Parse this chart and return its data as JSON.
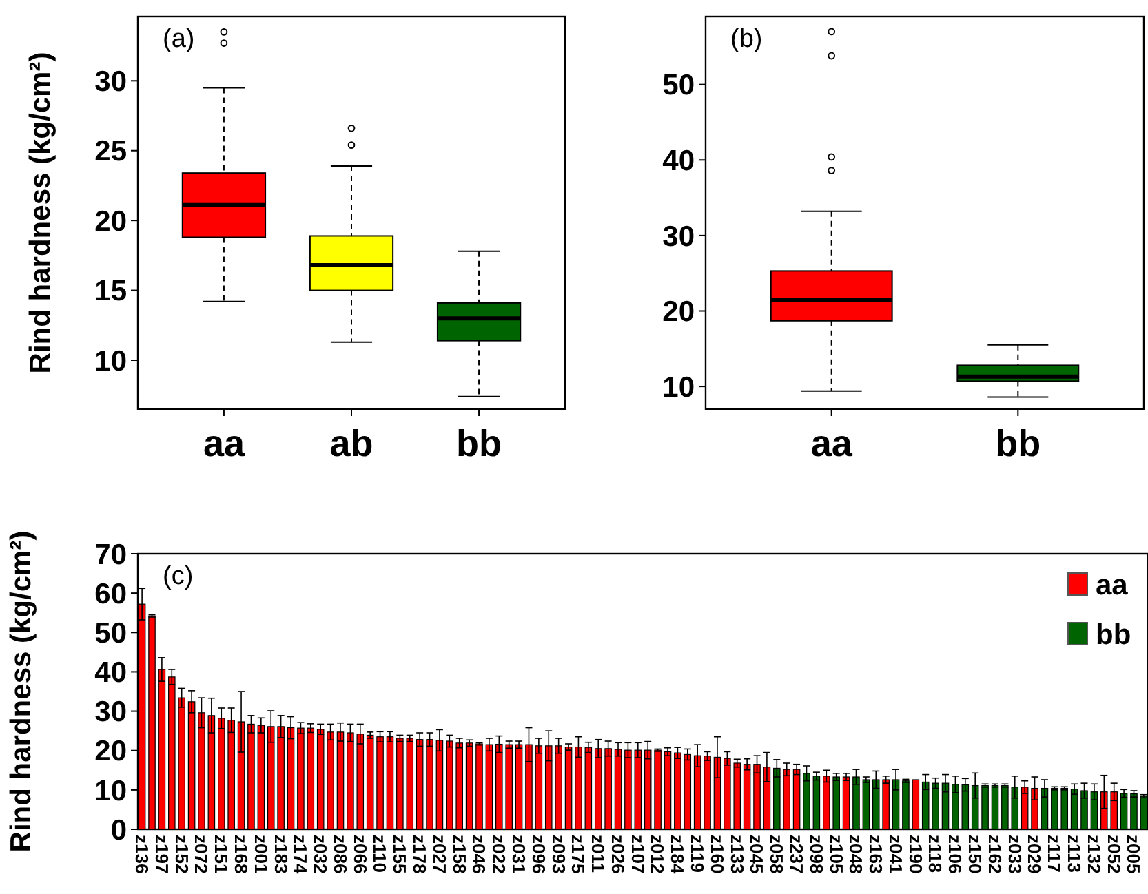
{
  "chart_data": [
    {
      "type": "box",
      "categories": [
        "aa",
        "ab",
        "bb"
      ],
      "ylabel": "Rind hardness (kg/cm²)",
      "annotations": [
        "(a)"
      ],
      "ylim": [
        6.5,
        34.6
      ],
      "yticks": [
        10,
        15,
        20,
        25,
        30
      ],
      "colors": [
        "#ff0000",
        "#ffff00",
        "#006400"
      ],
      "boxes": [
        {
          "low": 14.2,
          "q1": 18.8,
          "median": 21.1,
          "q3": 23.4,
          "high": 29.5,
          "outliers": [
            32.7,
            33.5
          ]
        },
        {
          "low": 11.3,
          "q1": 15.0,
          "median": 16.8,
          "q3": 18.9,
          "high": 23.9,
          "outliers": [
            25.4,
            26.6
          ]
        },
        {
          "low": 7.4,
          "q1": 11.4,
          "median": 13.0,
          "q3": 14.1,
          "high": 17.8
        }
      ]
    },
    {
      "type": "box",
      "categories": [
        "aa",
        "bb"
      ],
      "annotations": [
        "(b)"
      ],
      "ylim": [
        7,
        59
      ],
      "yticks": [
        10,
        20,
        30,
        40,
        50
      ],
      "colors": [
        "#ff0000",
        "#006400"
      ],
      "boxes": [
        {
          "low": 9.4,
          "q1": 18.7,
          "median": 21.5,
          "q3": 25.3,
          "high": 33.2,
          "outliers": [
            38.6,
            40.4,
            53.8,
            57.0
          ]
        },
        {
          "low": 8.6,
          "q1": 10.7,
          "median": 11.3,
          "q3": 12.8,
          "high": 15.5
        }
      ]
    },
    {
      "type": "bar",
      "stacked": true,
      "ylabel": "Rind hardness (kg/cm²)",
      "annotations": [
        "(c)"
      ],
      "ylim": [
        0,
        70
      ],
      "yticks": [
        0,
        10,
        20,
        30,
        40,
        50,
        60,
        70
      ],
      "legend": "top right",
      "categories": [
        "z136",
        null,
        "z197",
        null,
        "z152",
        null,
        "z072",
        null,
        "z151",
        null,
        "z168",
        null,
        "z001",
        null,
        "z183",
        null,
        "z174",
        null,
        "z032",
        null,
        "z086",
        null,
        "z066",
        null,
        "z110",
        null,
        "z155",
        null,
        "z178",
        null,
        "z027",
        null,
        "z158",
        null,
        "z046",
        null,
        "z022",
        null,
        "z031",
        null,
        "z096",
        null,
        "z093",
        null,
        "z175",
        null,
        "z011",
        null,
        "z026",
        null,
        "z107",
        null,
        "z012",
        null,
        "z184",
        null,
        "z119",
        null,
        "z160",
        null,
        "z133",
        null,
        "z045",
        null,
        "z058",
        null,
        "z237",
        null,
        "z098",
        null,
        "z105",
        null,
        "z048",
        null,
        "z163",
        null,
        "z041",
        null,
        "z190",
        null,
        "z118",
        null,
        "z106",
        null,
        "z150",
        null,
        "z162",
        null,
        "z033",
        null,
        "z029",
        null,
        "z117",
        null,
        "z113",
        null,
        "z132",
        null,
        "z052",
        null,
        "z005",
        null
      ],
      "series": [
        {
          "name": "aa",
          "color": "#ff0000",
          "values": [
            57.2,
            54.2,
            40.6,
            38.7,
            33.4,
            32.4,
            29.6,
            28.9,
            28.2,
            27.7,
            27.3,
            26.7,
            26.4,
            26.1,
            26.1,
            25.8,
            25.7,
            25.7,
            25.4,
            24.7,
            24.7,
            24.5,
            24.2,
            23.9,
            23.5,
            23.5,
            23.1,
            23.1,
            22.8,
            22.8,
            22.6,
            22.4,
            21.9,
            21.9,
            21.7,
            21.5,
            21.6,
            21.5,
            21.5,
            21.5,
            21.2,
            21.2,
            21.2,
            20.9,
            20.9,
            20.8,
            20.5,
            20.5,
            20.3,
            20.1,
            20.1,
            20.1,
            20.1,
            19.7,
            19.4,
            19.0,
            18.7,
            18.6,
            18.3,
            18.0,
            16.8,
            16.5,
            16.5,
            15.8,
            null,
            15.2,
            15.2,
            null,
            null,
            13.5,
            null,
            13.3,
            null,
            null,
            null,
            12.6,
            null,
            null,
            12.6,
            null,
            null,
            null,
            null,
            null,
            null,
            null,
            null,
            null,
            null,
            10.7,
            10.4,
            null,
            null,
            null,
            null,
            null,
            null,
            9.5,
            9.5,
            null,
            null,
            null
          ],
          "errors": [
            4,
            0.3,
            3,
            1.9,
            2.4,
            2.8,
            3.8,
            4.4,
            2.6,
            3.1,
            7.7,
            2.2,
            1.9,
            4,
            2.8,
            2.8,
            1.4,
            1.1,
            1.3,
            2,
            2.3,
            2.2,
            2.5,
            0.8,
            1.3,
            1.3,
            0.8,
            0.8,
            1.7,
            1.7,
            2.7,
            1.5,
            1.2,
            0.8,
            0.3,
            1.6,
            2.1,
            0.9,
            0.9,
            4.3,
            1.9,
            3.8,
            1.9,
            0.8,
            2.6,
            1.3,
            2.3,
            1.9,
            1.7,
            1.9,
            1.9,
            2.2,
            0.3,
            1,
            1.4,
            1.4,
            2.8,
            1.1,
            5.2,
            1.7,
            1,
            1.4,
            2.2,
            3.7,
            null,
            1.6,
            1.3,
            null,
            null,
            1.5,
            null,
            0.9,
            null,
            null,
            null,
            0.9,
            null,
            null,
            null,
            null,
            null,
            null,
            null,
            null,
            null,
            null,
            null,
            null,
            null,
            1.6,
            2.9,
            null,
            null,
            null,
            null,
            null,
            null,
            4.2,
            2.2,
            null,
            null,
            null
          ]
        },
        {
          "name": "bb",
          "color": "#006400",
          "values": [
            null,
            null,
            null,
            null,
            null,
            null,
            null,
            null,
            null,
            null,
            null,
            null,
            null,
            null,
            null,
            null,
            null,
            null,
            null,
            null,
            null,
            null,
            null,
            null,
            null,
            null,
            null,
            null,
            null,
            null,
            null,
            null,
            null,
            null,
            null,
            null,
            null,
            null,
            null,
            null,
            null,
            null,
            null,
            null,
            null,
            null,
            null,
            null,
            null,
            null,
            null,
            null,
            null,
            null,
            null,
            null,
            null,
            null,
            null,
            null,
            null,
            null,
            null,
            null,
            15.5,
            null,
            null,
            14.2,
            13.5,
            null,
            13.3,
            null,
            13.3,
            12.6,
            12.6,
            null,
            12.6,
            12.3,
            null,
            12.0,
            11.7,
            11.7,
            11.4,
            11.3,
            11.1,
            11.1,
            11.1,
            11.1,
            10.7,
            null,
            null,
            10.4,
            10.4,
            10.4,
            10.2,
            9.8,
            9.5,
            null,
            null,
            9.1,
            9.0,
            8.4
          ],
          "errors": [
            null,
            null,
            null,
            null,
            null,
            null,
            null,
            null,
            null,
            null,
            null,
            null,
            null,
            null,
            null,
            null,
            null,
            null,
            null,
            null,
            null,
            null,
            null,
            null,
            null,
            null,
            null,
            null,
            null,
            null,
            null,
            null,
            null,
            null,
            null,
            null,
            null,
            null,
            null,
            null,
            null,
            null,
            null,
            null,
            null,
            null,
            null,
            null,
            null,
            null,
            null,
            null,
            null,
            null,
            null,
            null,
            null,
            null,
            null,
            null,
            null,
            null,
            null,
            null,
            2.2,
            null,
            null,
            1.9,
            1,
            null,
            0.9,
            null,
            1.9,
            0.7,
            2.2,
            null,
            2.6,
            0.4,
            null,
            1.9,
            1.3,
            2.2,
            2.1,
            1.6,
            3.2,
            0.4,
            0.4,
            0.4,
            2.8,
            null,
            null,
            2.2,
            0.4,
            0.4,
            1.3,
            1.9,
            2,
            null,
            null,
            1,
            0.8,
            0.4
          ]
        }
      ]
    }
  ]
}
